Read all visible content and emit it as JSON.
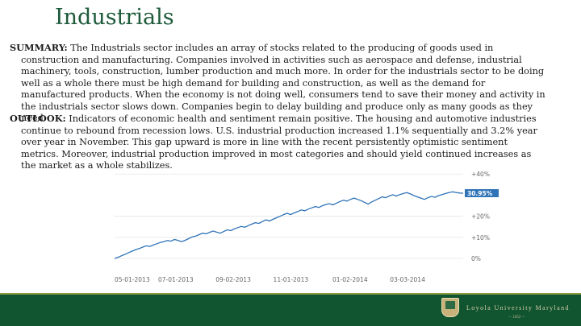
{
  "title": "Industrials",
  "summary": {
    "label": "SUMMARY:",
    "text": " The Industrials sector includes an array of stocks related to the producing of goods used in construction and manufacturing. Companies involved in activities such as aerospace and defense, industrial machinery, tools, construction, lumber production and much more. In order for the industrials sector to be doing well as a whole there must be high demand for building and construction, as well as the demand for manufactured products. When the economy is not doing well, consumers tend to save their money and activity in the industrials sector slows down. Companies begin to delay building and produce only as many goods as they need."
  },
  "outlook": {
    "label": "OUTLOOK:",
    "text": " Indicators of economic health and sentiment remain positive. The housing and automotive industries continue to rebound from recession lows. U.S. industrial production increased 1.1% sequentially and 3.2% year over year in November. This gap upward is more in line with the recent persistently optimistic sentiment metrics. Moreover, industrial production improved in most categories and should yield continued increases as the market as a whole stabilizes."
  },
  "chart_data": {
    "type": "line",
    "x_tick_labels": [
      "05-01-2013",
      "07-01-2013",
      "09-02-2013",
      "11-01-2013",
      "01-02-2014",
      "03-03-2014"
    ],
    "y_tick_labels": [
      "0%",
      "+10%",
      "+20%",
      "+40%"
    ],
    "y_ticks": [
      0,
      10,
      20,
      40
    ],
    "ylim": [
      -3,
      42
    ],
    "current_value_label": "30.95%",
    "line_color": "#2e73b8",
    "x_count": 100,
    "series": [
      {
        "values": [
          0,
          0.6,
          1.3,
          2,
          2.8,
          3.5,
          4.2,
          4.7,
          5.4,
          6,
          5.7,
          6.4,
          7,
          7.6,
          8,
          8.5,
          8.2,
          9,
          8.6,
          8,
          8.6,
          9.4,
          10.2,
          10.6,
          11.3,
          12,
          11.7,
          12.4,
          13,
          12.5,
          12,
          12.8,
          13.6,
          13.2,
          14,
          14.6,
          15.2,
          14.8,
          15.6,
          16.3,
          17,
          16.6,
          17.5,
          18.3,
          17.8,
          18.6,
          19.3,
          20,
          20.8,
          21.4,
          20.8,
          21.6,
          22.2,
          23,
          22.6,
          23.4,
          24,
          24.6,
          24.2,
          25,
          25.6,
          26,
          25.4,
          26.2,
          27,
          27.6,
          27.2,
          28,
          28.6,
          28,
          27.4,
          26.6,
          25.8,
          26.8,
          27.6,
          28.4,
          29.2,
          28.8,
          29.6,
          30.2,
          29.6,
          30.3,
          30.8,
          31.2,
          30.6,
          29.8,
          29.2,
          28.6,
          28,
          28.8,
          29.4,
          29,
          29.8,
          30.3,
          30.8,
          31.2,
          31.6,
          31.3,
          31,
          30.95
        ]
      }
    ]
  },
  "footer": {
    "university": "Loyola University Maryland",
    "subtext": "— 1852 —",
    "crest_icon": "university-crest-icon"
  }
}
